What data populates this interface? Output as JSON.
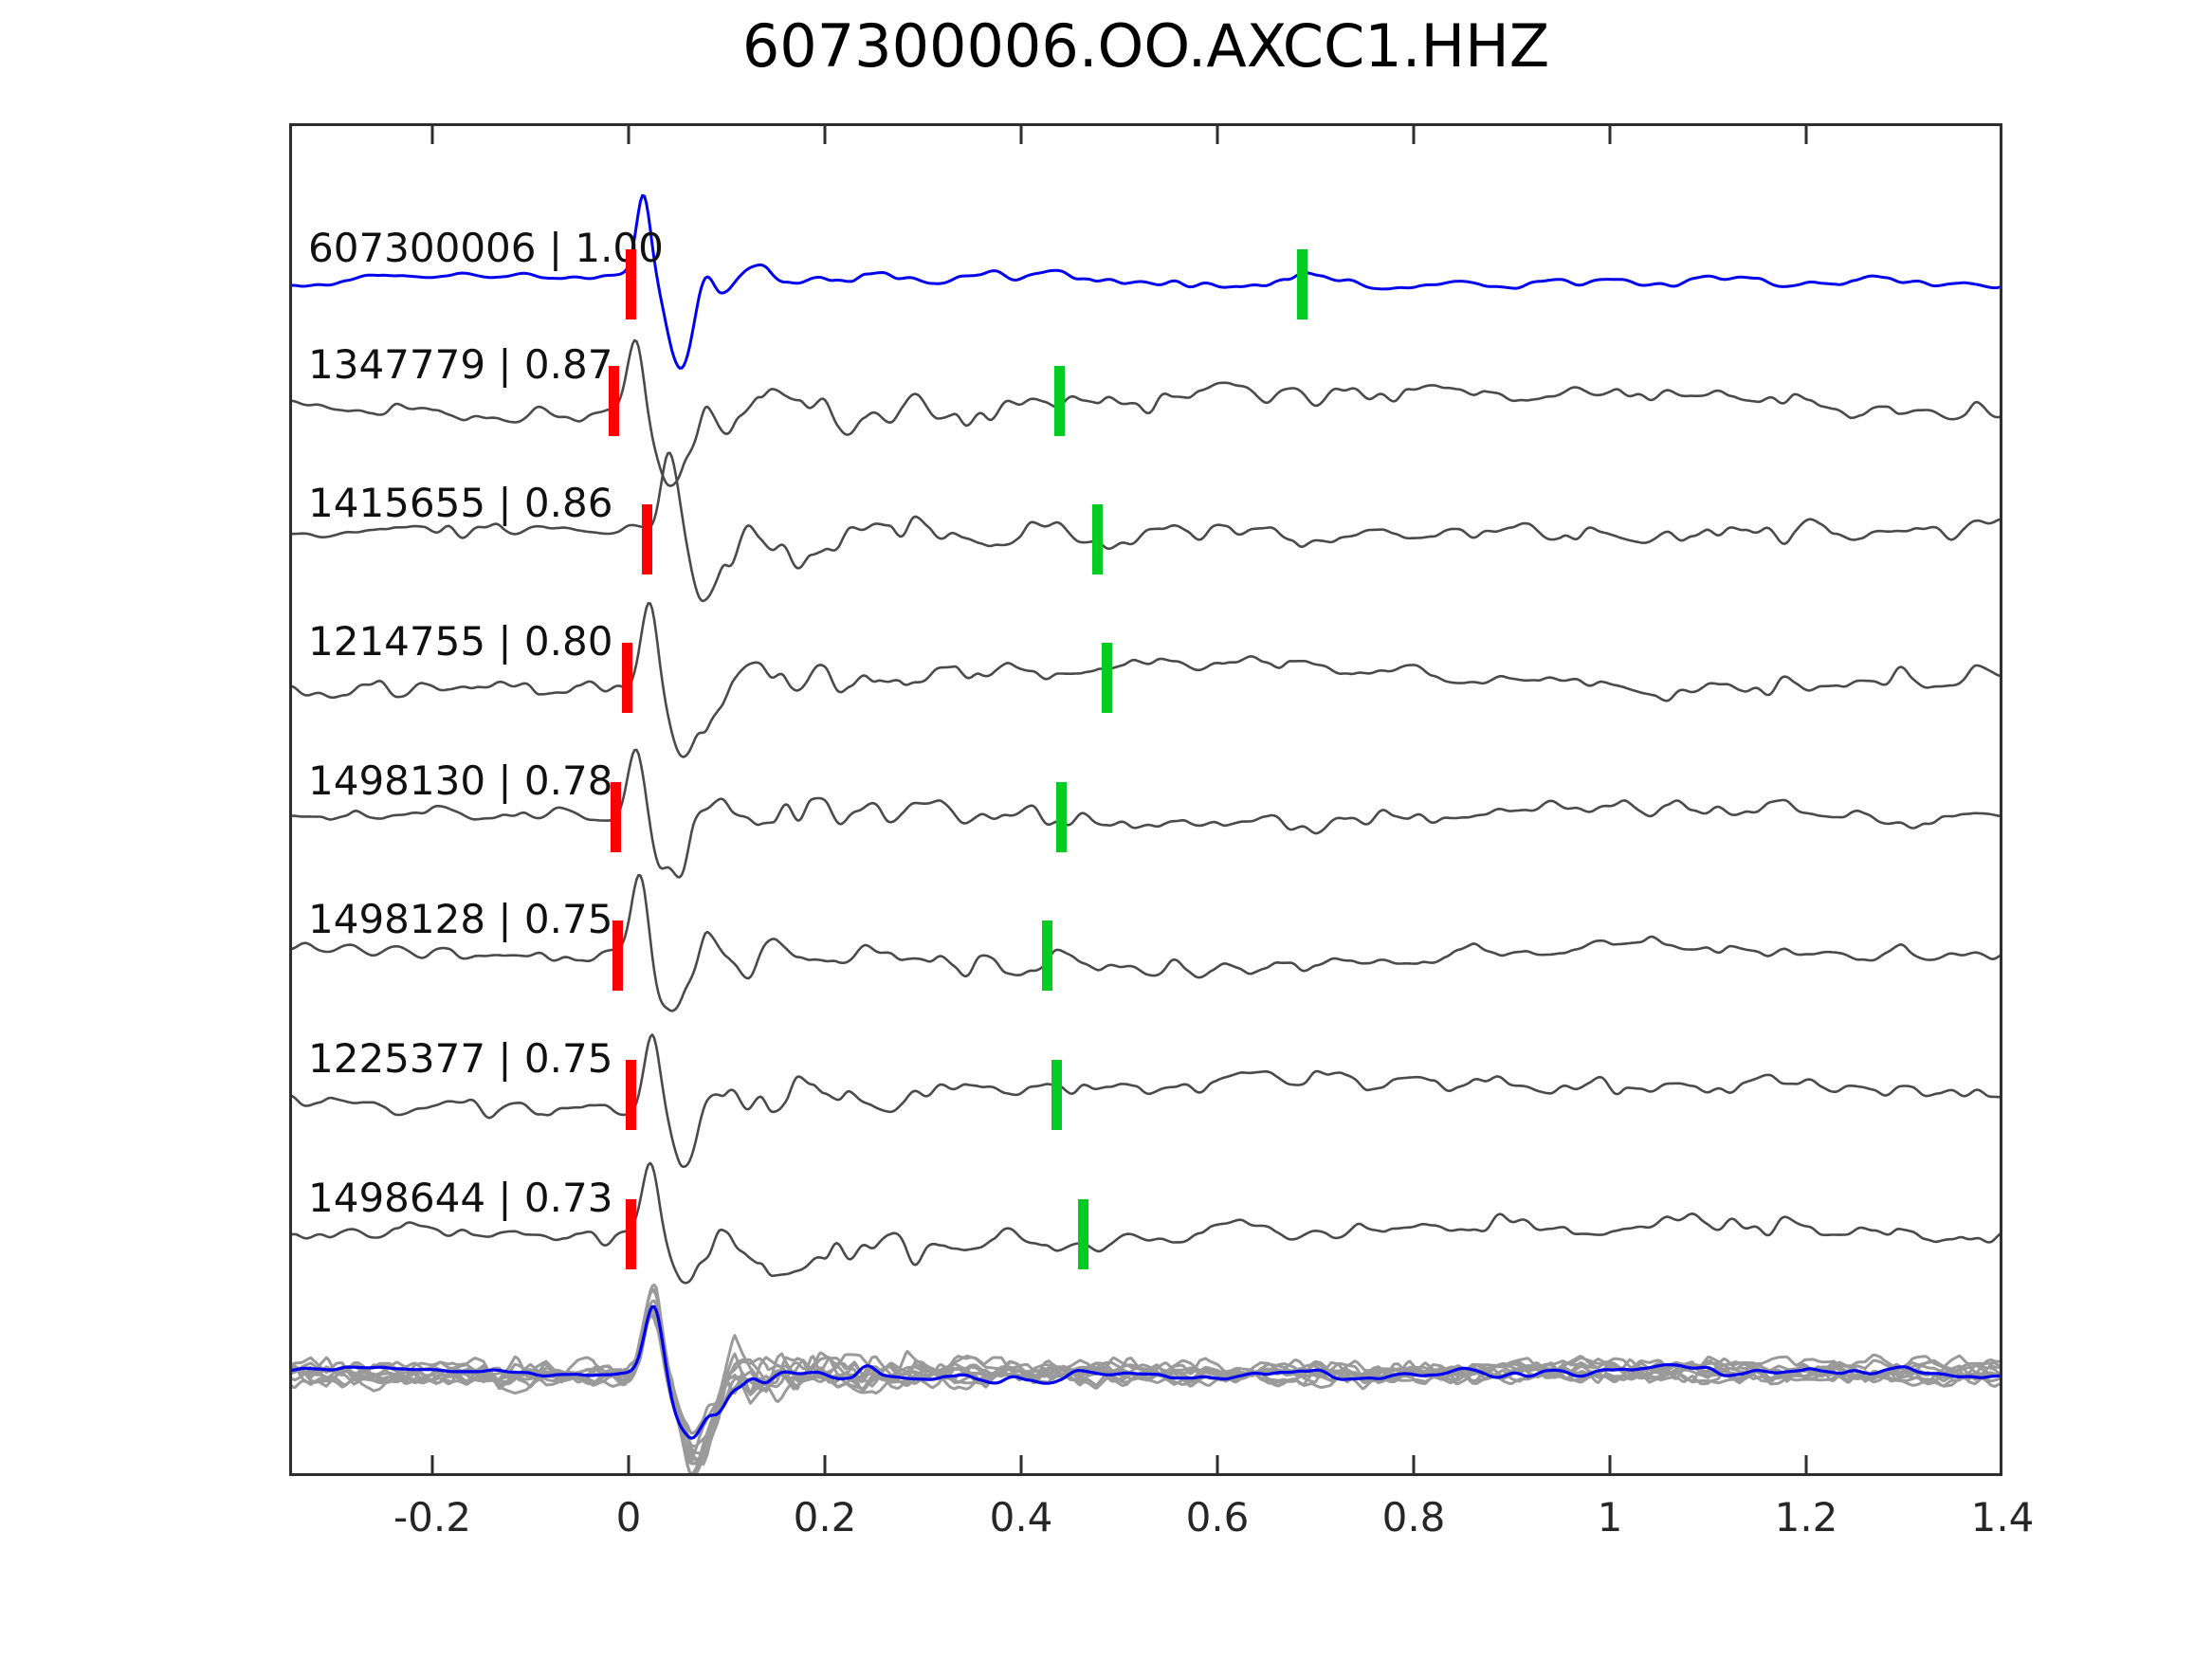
{
  "title": "607300006.OO.AXCC1.HHZ",
  "colors": {
    "template_trace": "#0000ee",
    "member_trace": "#4a4a4a",
    "stack_gray": "#9a9a9a",
    "stack_overlay": "#0000ee",
    "red_pick_marker": "#ff0000",
    "green_pick_marker": "#00cc22",
    "axis": "#2e2e2e",
    "text": "#111111"
  },
  "axis": {
    "x_ticks": [
      "-0.2",
      "0",
      "0.2",
      "0.4",
      "0.6",
      "0.8",
      "1",
      "1.2",
      "1.4"
    ],
    "x_tick_values": [
      -0.2,
      0,
      0.2,
      0.4,
      0.6,
      0.8,
      1,
      1.2,
      1.4
    ],
    "xlim": [
      -0.346,
      1.4
    ],
    "ylabel": "",
    "xlabel": ""
  },
  "traces": [
    {
      "event_id": "607300006",
      "similarity": "1.00",
      "label": "607300006 | 1.00",
      "role": "template",
      "red_pick_s": 0.002,
      "green_pick_s": 0.686
    },
    {
      "event_id": "1347779",
      "similarity": "0.87",
      "label": "1347779 | 0.87",
      "role": "member",
      "red_pick_s": -0.015,
      "green_pick_s": 0.439
    },
    {
      "event_id": "1415655",
      "similarity": "0.86",
      "label": "1415655 | 0.86",
      "role": "member",
      "red_pick_s": 0.019,
      "green_pick_s": 0.478
    },
    {
      "event_id": "1214755",
      "similarity": "0.80",
      "label": "1214755 | 0.80",
      "role": "member",
      "red_pick_s": -0.001,
      "green_pick_s": 0.487
    },
    {
      "event_id": "1498130",
      "similarity": "0.78",
      "label": "1498130 | 0.78",
      "role": "member",
      "red_pick_s": -0.013,
      "green_pick_s": 0.441
    },
    {
      "event_id": "1498128",
      "similarity": "0.75",
      "label": "1498128 | 0.75",
      "role": "member",
      "red_pick_s": -0.011,
      "green_pick_s": 0.427
    },
    {
      "event_id": "1225377",
      "similarity": "0.75",
      "label": "1225377 | 0.75",
      "role": "member",
      "red_pick_s": 0.002,
      "green_pick_s": 0.436
    },
    {
      "event_id": "1498644",
      "similarity": "0.73",
      "label": "1498644 | 0.73",
      "role": "member",
      "red_pick_s": 0.002,
      "green_pick_s": 0.463
    }
  ],
  "stack": {
    "n_overlaid_gray": 10,
    "overlay": "blue stacked waveform",
    "description": "bottom row: all member waveforms overlaid in gray with blue stack on top, aligned on onset near t=0"
  },
  "chart_data": {
    "type": "line",
    "title": "607300006.OO.AXCC1.HHZ",
    "xlabel": "",
    "ylabel": "",
    "xlim": [
      -0.35,
      1.4
    ],
    "x_ticks": [
      -0.2,
      0,
      0.2,
      0.4,
      0.6,
      0.8,
      1,
      1.2,
      1.4
    ],
    "grid": false,
    "legend": "none",
    "series": [
      {
        "name": "607300006 | 1.00",
        "event_id": "607300006",
        "similarity": 1.0,
        "row": 1,
        "color": "blue",
        "red_marker_s": 0.0,
        "green_marker_s": 0.69,
        "waveform": "quiet noise, sharp upward onset at t=0, large down-swing near t=0.05, decaying coda to ~0.45, low tail"
      },
      {
        "name": "1347779 | 0.87",
        "event_id": "1347779",
        "similarity": 0.87,
        "row": 2,
        "color": "dark-gray",
        "red_marker_s": -0.01,
        "green_marker_s": 0.44,
        "waveform": "noisy pre-signal, impulsive onset at pick, oscillatory decaying coda"
      },
      {
        "name": "1415655 | 0.86",
        "event_id": "1415655",
        "similarity": 0.86,
        "row": 3,
        "color": "dark-gray",
        "red_marker_s": 0.02,
        "green_marker_s": 0.48,
        "waveform": "noisy pre-signal, impulsive onset at pick, oscillatory decaying coda"
      },
      {
        "name": "1214755 | 0.80",
        "event_id": "1214755",
        "similarity": 0.8,
        "row": 4,
        "color": "dark-gray",
        "red_marker_s": 0.0,
        "green_marker_s": 0.49,
        "waveform": "noisy pre-signal, impulsive onset at pick, oscillatory decaying coda"
      },
      {
        "name": "1498130 | 0.78",
        "event_id": "1498130",
        "similarity": 0.78,
        "row": 5,
        "color": "dark-gray",
        "red_marker_s": -0.01,
        "green_marker_s": 0.44,
        "waveform": "noisy pre-signal, impulsive onset at pick, oscillatory decaying coda"
      },
      {
        "name": "1498128 | 0.75",
        "event_id": "1498128",
        "similarity": 0.75,
        "row": 6,
        "color": "dark-gray",
        "red_marker_s": -0.01,
        "green_marker_s": 0.43,
        "waveform": "quiet pre-signal, impulsive onset at pick, oscillatory decaying coda"
      },
      {
        "name": "1225377 | 0.75",
        "event_id": "1225377",
        "similarity": 0.75,
        "row": 7,
        "color": "dark-gray",
        "red_marker_s": 0.0,
        "green_marker_s": 0.44,
        "waveform": "noisy pre-signal, impulsive onset at pick, oscillatory decaying coda"
      },
      {
        "name": "1498644 | 0.73",
        "event_id": "1498644",
        "similarity": 0.73,
        "row": 8,
        "color": "dark-gray",
        "red_marker_s": 0.0,
        "green_marker_s": 0.46,
        "waveform": "noisy pre-signal, impulsive onset at pick, oscillatory decaying coda"
      },
      {
        "name": "stack",
        "row": 9,
        "color": "gray+blue",
        "waveform": "~10 gray member traces overlaid with blue stack; sharp peak ~t=0.03 and trough ~t=0.07"
      }
    ]
  }
}
